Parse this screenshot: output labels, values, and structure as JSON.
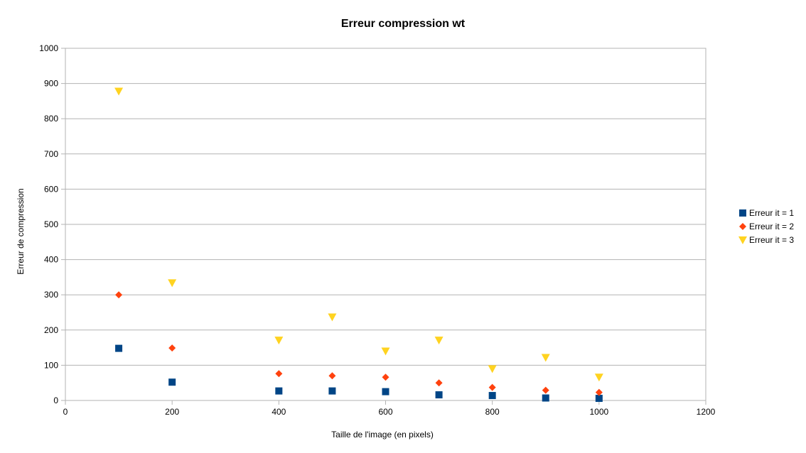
{
  "chart_data": {
    "type": "scatter",
    "title": "Erreur compression wt",
    "xlabel": "Taille de l'image (en pixels)",
    "ylabel": "Erreur de compression",
    "xlim": [
      0,
      1200
    ],
    "ylim": [
      0,
      1000
    ],
    "xticks": [
      0,
      200,
      400,
      600,
      800,
      1000,
      1200
    ],
    "yticks": [
      0,
      100,
      200,
      300,
      400,
      500,
      600,
      700,
      800,
      900,
      1000
    ],
    "grid": "horizontal",
    "legend_position": "right",
    "series": [
      {
        "name": "Erreur it = 1",
        "marker": "square",
        "color": "#004586",
        "x": [
          100,
          200,
          400,
          500,
          600,
          700,
          800,
          900,
          1000
        ],
        "y": [
          148,
          52,
          27,
          27,
          25,
          16,
          14,
          7,
          6
        ]
      },
      {
        "name": "Erreur it = 2",
        "marker": "diamond",
        "color": "#ff420e",
        "x": [
          100,
          200,
          400,
          500,
          600,
          700,
          800,
          900,
          1000
        ],
        "y": [
          300,
          149,
          76,
          70,
          66,
          50,
          37,
          29,
          23
        ]
      },
      {
        "name": "Erreur it = 3",
        "marker": "triangle-down",
        "color": "#ffd320",
        "x": [
          100,
          200,
          400,
          500,
          600,
          700,
          800,
          900,
          1000
        ],
        "y": [
          878,
          334,
          171,
          237,
          140,
          171,
          90,
          122,
          66
        ]
      }
    ]
  }
}
